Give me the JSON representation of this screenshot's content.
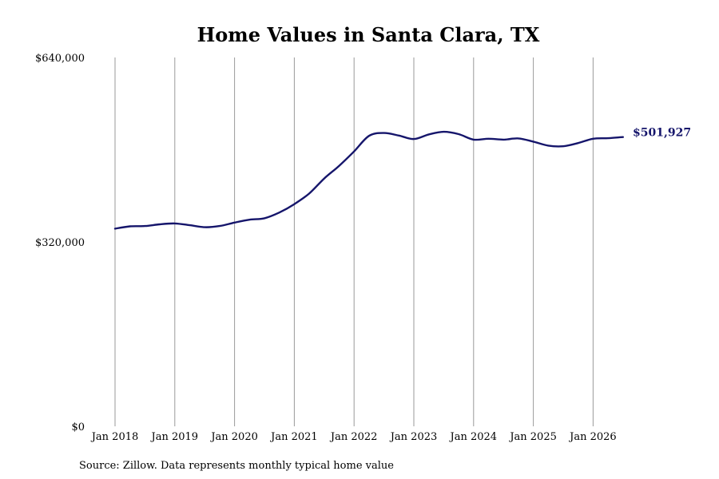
{
  "chart_data": {
    "type": "line",
    "title": "Home Values in Santa Clara, TX",
    "xlabel": "",
    "ylabel": "",
    "ylim": [
      0,
      640000
    ],
    "yticks": [
      {
        "value": 0,
        "label": "$0"
      },
      {
        "value": 320000,
        "label": "$320,000"
      },
      {
        "value": 640000,
        "label": "$640,000"
      }
    ],
    "xticks": [
      "Jan 2018",
      "Jan 2019",
      "Jan 2020",
      "Jan 2021",
      "Jan 2022",
      "Jan 2023",
      "Jan 2024",
      "Jan 2025",
      "Jan 2026"
    ],
    "grid": "vertical",
    "line_color": "#15156b",
    "end_label": "$501,927",
    "series": [
      {
        "x": [
          "2018-01",
          "2018-04",
          "2018-07",
          "2018-10",
          "2019-01",
          "2019-04",
          "2019-07",
          "2019-10",
          "2020-01",
          "2020-04",
          "2020-07",
          "2020-10",
          "2021-01",
          "2021-04",
          "2021-07",
          "2021-10",
          "2022-01",
          "2022-04",
          "2022-07",
          "2022-10",
          "2023-01",
          "2023-04",
          "2023-07",
          "2023-10",
          "2024-01",
          "2024-04",
          "2024-07",
          "2024-10",
          "2025-01",
          "2025-04",
          "2025-07",
          "2025-10",
          "2026-01",
          "2026-04",
          "2026-07"
        ],
        "values": [
          343000,
          347000,
          347500,
          350500,
          352000,
          349000,
          345500,
          347500,
          353500,
          358500,
          361000,
          371000,
          385500,
          404000,
          430000,
          452000,
          477000,
          504000,
          509000,
          504500,
          498500,
          506500,
          511000,
          507000,
          497500,
          499000,
          497500,
          499500,
          494000,
          487000,
          486000,
          491500,
          499000,
          500000,
          501927
        ]
      }
    ]
  },
  "footer": {
    "source": "Source: Zillow. Data represents monthly typical home value"
  }
}
